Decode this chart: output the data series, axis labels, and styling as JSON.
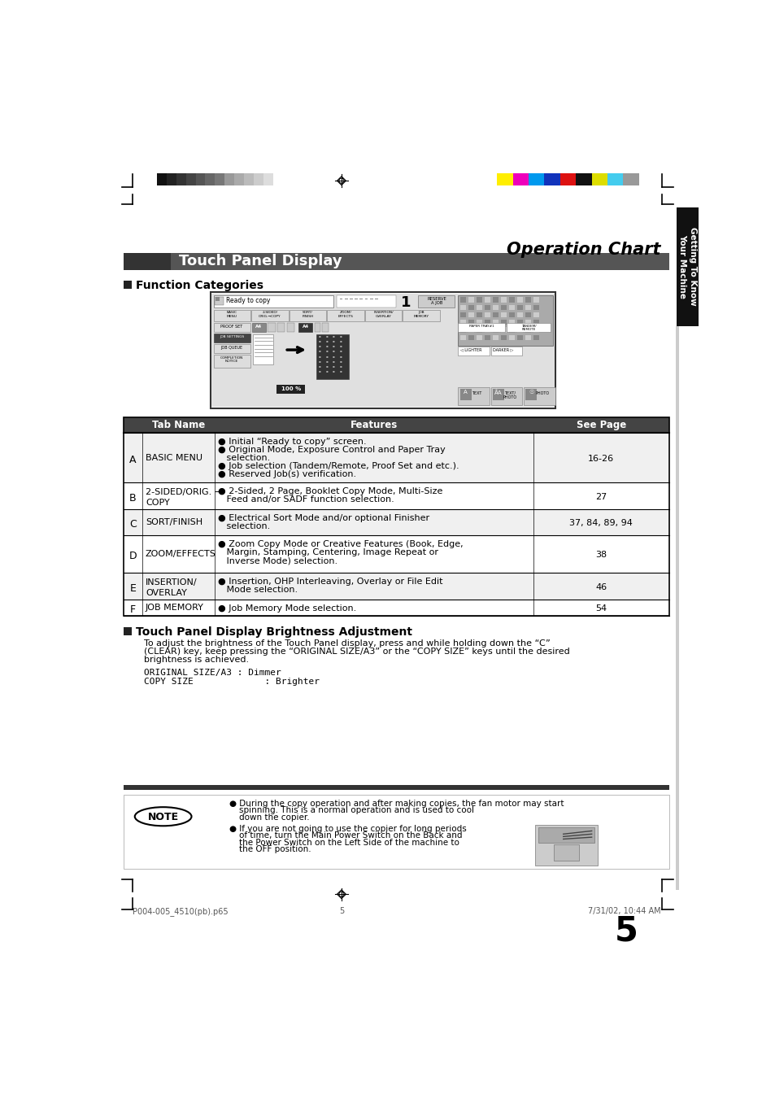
{
  "page_bg": "#ffffff",
  "page_title": "Operation Chart",
  "section_title": "Touch Panel Display",
  "section_title_bg": "#555555",
  "section_title_color": "#ffffff",
  "subsection1": "Function Categories",
  "subsection2": "Touch Panel Display Brightness Adjustment",
  "brightness_body1": "To adjust the brightness of the Touch Panel display, press and while holding down the “C”",
  "brightness_body2": "(CLEAR) key, keep pressing the “ORIGINAL SIZE/A3” or the “COPY SIZE” keys until the desired",
  "brightness_body3": "brightness is achieved.",
  "brightness_line1": "ORIGINAL SIZE/A3 : Dimmer",
  "brightness_line2": "COPY SIZE             : Brighter",
  "note_text1a": "● During the copy operation and after making copies, the fan motor may start",
  "note_text1b": "spinning. This is a normal operation and is used to cool",
  "note_text1c": "down the copier.",
  "note_text2a": "● If you are not going to use the copier for long periods",
  "note_text2b": "of time, turn the Main Power Switch on the Back and",
  "note_text2c": "the Power Switch on the Left Side of the machine to",
  "note_text2d": "the OFF position.",
  "table_rows": [
    {
      "letter": "A",
      "tab_name": "BASIC MENU",
      "features_lines": [
        "● Initial “Ready to copy” screen.",
        "● Original Mode, Exposure Control and Paper Tray",
        "   selection.",
        "● Job selection (Tandem/Remote, Proof Set and etc.).",
        "● Reserved Job(s) verification."
      ],
      "see_page": "16-26",
      "bg": "#f0f0f0"
    },
    {
      "letter": "B",
      "tab_name": "2-SIDED/ORIG. →\nCOPY",
      "features_lines": [
        "● 2-Sided, 2 Page, Booklet Copy Mode, Multi-Size",
        "   Feed and/or SADF function selection."
      ],
      "see_page": "27",
      "bg": "#ffffff"
    },
    {
      "letter": "C",
      "tab_name": "SORT/FINISH",
      "features_lines": [
        "● Electrical Sort Mode and/or optional Finisher",
        "   selection."
      ],
      "see_page": "37, 84, 89, 94",
      "bg": "#f0f0f0"
    },
    {
      "letter": "D",
      "tab_name": "ZOOM/EFFECTS",
      "features_lines": [
        "● Zoom Copy Mode or Creative Features (Book, Edge,",
        "   Margin, Stamping, Centering, Image Repeat or",
        "   Inverse Mode) selection."
      ],
      "see_page": "38",
      "bg": "#ffffff"
    },
    {
      "letter": "E",
      "tab_name": "INSERTION/\nOVERLAY",
      "features_lines": [
        "● Insertion, OHP Interleaving, Overlay or File Edit",
        "   Mode selection."
      ],
      "see_page": "46",
      "bg": "#f0f0f0"
    },
    {
      "letter": "F",
      "tab_name": "JOB MEMORY",
      "features_lines": [
        "● Job Memory Mode selection."
      ],
      "see_page": "54",
      "bg": "#ffffff"
    }
  ],
  "right_tab_text": "Getting To Know\nYour Machine",
  "right_tab_bg": "#111111",
  "right_tab_color": "#ffffff",
  "grayscale_colors": [
    "#111111",
    "#222222",
    "#333333",
    "#444444",
    "#555555",
    "#666666",
    "#777777",
    "#999999",
    "#aaaaaa",
    "#bbbbbb",
    "#cccccc",
    "#dddddd",
    "#ffffff"
  ],
  "color_swatches": [
    "#ffee00",
    "#ee00bb",
    "#0099ee",
    "#1133bb",
    "#dd1111",
    "#111111",
    "#dddd00",
    "#44ccee",
    "#999999"
  ],
  "page_number": "5",
  "footer_left": "P004-005_4510(pb).p65",
  "footer_center": "5",
  "footer_right": "7/31/02, 10:44 AM"
}
